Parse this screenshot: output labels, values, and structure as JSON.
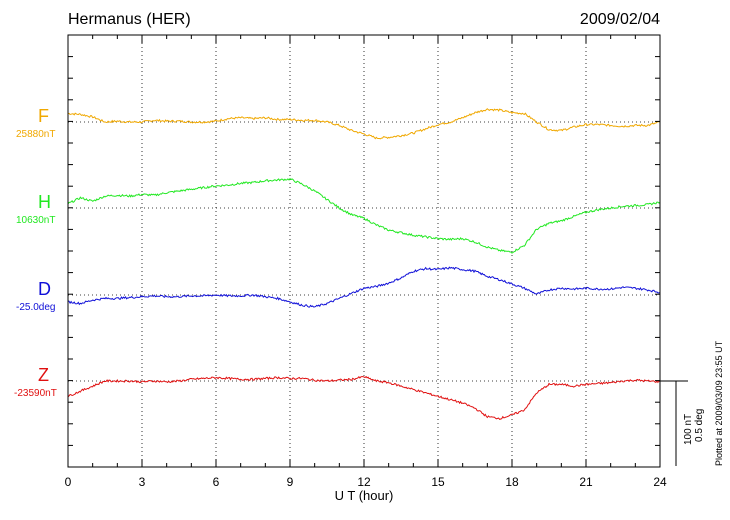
{
  "header": {
    "station": "Hermanus (HER)",
    "date": "2009/02/04"
  },
  "footer": {
    "plotted": "Plotted at 2009/03/09 23:55 UT"
  },
  "scale": {
    "nt": "100 nT",
    "deg": "0.5 deg"
  },
  "chart_data": {
    "type": "line",
    "xlabel": "U T (hour)",
    "xlim": [
      0,
      24
    ],
    "xticks": [
      "0",
      "3",
      "6",
      "9",
      "12",
      "15",
      "18",
      "21",
      "24"
    ],
    "scale_bar": "100 nT / 0.5 deg",
    "grid": true,
    "series": [
      {
        "name": "F",
        "baseline": "25880nT",
        "color": "#f0a800",
        "units": "nT rel. baseline",
        "x": [
          0,
          0.5,
          1,
          1.5,
          2,
          2.5,
          3,
          3.5,
          4,
          4.5,
          5,
          5.5,
          6,
          6.5,
          7,
          7.5,
          8,
          8.5,
          9,
          9.5,
          10,
          10.5,
          11,
          11.5,
          12,
          12.5,
          13,
          13.5,
          14,
          14.5,
          15,
          15.5,
          16,
          16.5,
          17,
          17.5,
          18,
          18.5,
          19,
          19.5,
          20,
          20.5,
          21,
          21.5,
          22,
          22.5,
          23,
          23.5,
          24
        ],
        "y": [
          10,
          9,
          6,
          0,
          1,
          0,
          0,
          2,
          1,
          1,
          0,
          0,
          1,
          4,
          5,
          4,
          5,
          3,
          3,
          2,
          2,
          0,
          -4,
          -10,
          -14,
          -19,
          -18,
          -16,
          -13,
          -8,
          -3,
          0,
          5,
          11,
          15,
          14,
          11,
          10,
          0,
          -9,
          -10,
          -6,
          -3,
          -3,
          -4,
          -5,
          -4,
          -4,
          0
        ]
      },
      {
        "name": "H",
        "baseline": "10630nT",
        "color": "#22e822",
        "units": "nT rel. baseline",
        "x": [
          0,
          0.5,
          1,
          1.5,
          2,
          2.5,
          3,
          3.5,
          4,
          4.5,
          5,
          5.5,
          6,
          6.5,
          7,
          7.5,
          8,
          8.5,
          9,
          9.5,
          10,
          10.5,
          11,
          11.5,
          12,
          12.5,
          13,
          13.5,
          14,
          14.5,
          15,
          15.5,
          16,
          16.5,
          17,
          17.5,
          18,
          18.5,
          19,
          19.5,
          20,
          20.5,
          21,
          21.5,
          22,
          22.5,
          23,
          23.5,
          24
        ],
        "y": [
          5,
          12,
          8,
          14,
          15,
          14,
          16,
          15,
          18,
          20,
          22,
          24,
          26,
          27,
          29,
          30,
          32,
          33,
          34,
          28,
          20,
          10,
          0,
          -8,
          -12,
          -20,
          -26,
          -29,
          -32,
          -34,
          -36,
          -37,
          -36,
          -40,
          -46,
          -50,
          -52,
          -44,
          -25,
          -18,
          -15,
          -10,
          -5,
          -2,
          0,
          2,
          3,
          4,
          7
        ]
      },
      {
        "name": "D",
        "baseline": "-25.0deg",
        "color": "#1010d8",
        "units": "nT-equivalent rel. baseline",
        "x": [
          0,
          0.5,
          1,
          1.5,
          2,
          2.5,
          3,
          3.5,
          4,
          4.5,
          5,
          5.5,
          6,
          6.5,
          7,
          7.5,
          8,
          8.5,
          9,
          9.5,
          10,
          10.5,
          11,
          11.5,
          12,
          12.5,
          13,
          13.5,
          14,
          14.5,
          15,
          15.5,
          16,
          16.5,
          17,
          17.5,
          18,
          18.5,
          19,
          19.5,
          20,
          20.5,
          21,
          21.5,
          22,
          22.5,
          23,
          23.5,
          24
        ],
        "y": [
          -8,
          -10,
          -6,
          -4,
          -4,
          -3,
          -2,
          -1,
          -2,
          -2,
          -1,
          -1,
          0,
          -1,
          -1,
          0,
          -2,
          -4,
          -8,
          -12,
          -14,
          -10,
          -4,
          2,
          8,
          10,
          14,
          20,
          28,
          31,
          30,
          32,
          30,
          28,
          22,
          18,
          13,
          8,
          1,
          6,
          8,
          7,
          8,
          7,
          7,
          9,
          8,
          6,
          3
        ]
      },
      {
        "name": "Z",
        "baseline": "-23590nT",
        "color": "#e01010",
        "units": "nT rel. baseline",
        "x": [
          0,
          0.5,
          1,
          1.5,
          2,
          2.5,
          3,
          3.5,
          4,
          4.5,
          5,
          5.5,
          6,
          6.5,
          7,
          7.5,
          8,
          8.5,
          9,
          9.5,
          10,
          10.5,
          11,
          11.5,
          12,
          12.5,
          13,
          13.5,
          14,
          14.5,
          15,
          15.5,
          16,
          16.5,
          17,
          17.5,
          18,
          18.5,
          19,
          19.5,
          20,
          20.5,
          21,
          21.5,
          22,
          22.5,
          23,
          23.5,
          24
        ],
        "y": [
          -18,
          -12,
          -6,
          0,
          0,
          0,
          -1,
          0,
          -1,
          0,
          2,
          3,
          4,
          3,
          2,
          2,
          3,
          4,
          3,
          3,
          1,
          0,
          1,
          2,
          5,
          0,
          -2,
          -6,
          -10,
          -14,
          -18,
          -22,
          -26,
          -32,
          -42,
          -44,
          -40,
          -34,
          -14,
          -4,
          -4,
          -6,
          -4,
          -3,
          -2,
          0,
          1,
          0,
          -1
        ]
      }
    ]
  }
}
